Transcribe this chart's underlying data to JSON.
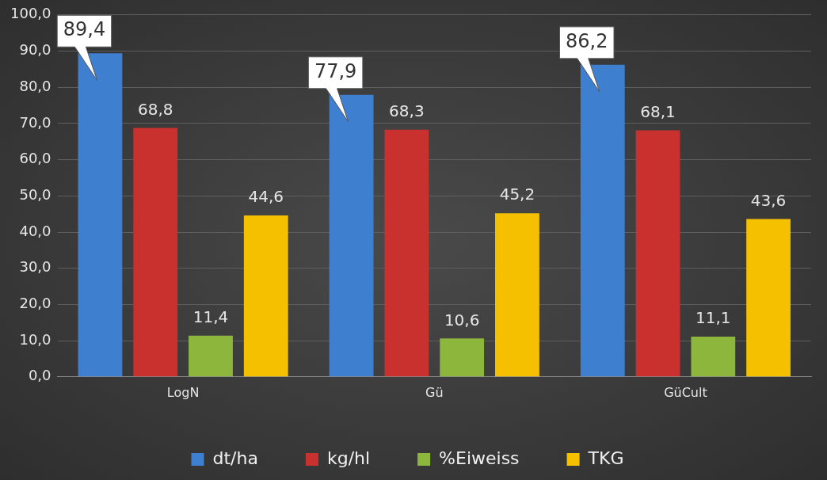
{
  "chart_data": {
    "type": "bar",
    "categories": [
      "LogN",
      "Gü",
      "GüCult"
    ],
    "series": [
      {
        "name": "dt/ha",
        "color": "#3f7fd0",
        "values": [
          89.4,
          77.9,
          86.2
        ],
        "value_labels": [
          "89,4",
          "77,9",
          "86,2"
        ]
      },
      {
        "name": "kg/hl",
        "color": "#c9312f",
        "values": [
          68.8,
          68.3,
          68.1
        ],
        "value_labels": [
          "68,8",
          "68,3",
          "68,1"
        ]
      },
      {
        "name": "%Eiweiss",
        "color": "#8cb63c",
        "values": [
          11.4,
          10.6,
          11.1
        ],
        "value_labels": [
          "11,4",
          "10,6",
          "11,1"
        ]
      },
      {
        "name": "TKG",
        "color": "#f5c000",
        "values": [
          44.6,
          45.2,
          43.6
        ],
        "value_labels": [
          "44,6",
          "45,2",
          "43,6"
        ]
      }
    ],
    "ylim": [
      0,
      100
    ],
    "yticks": [
      {
        "value": 0,
        "label": "0,0"
      },
      {
        "value": 10,
        "label": "10,0"
      },
      {
        "value": 20,
        "label": "20,0"
      },
      {
        "value": 30,
        "label": "30,0"
      },
      {
        "value": 40,
        "label": "40,0"
      },
      {
        "value": 50,
        "label": "50,0"
      },
      {
        "value": 60,
        "label": "60,0"
      },
      {
        "value": 70,
        "label": "70,0"
      },
      {
        "value": 80,
        "label": "80,0"
      },
      {
        "value": 90,
        "label": "90,0"
      },
      {
        "value": 100,
        "label": "100,0"
      }
    ],
    "grid": "y",
    "legend": "bottom"
  }
}
